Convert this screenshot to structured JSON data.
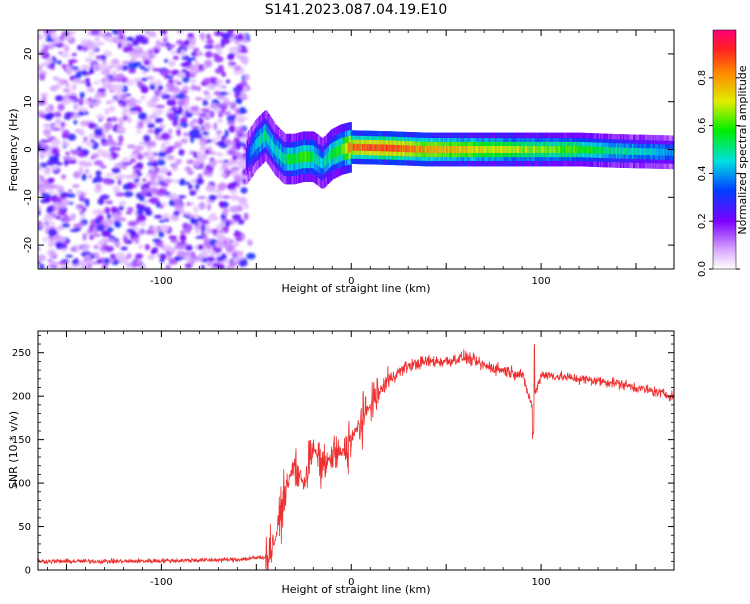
{
  "title": "S141.2023.087.04.19.E10",
  "colors": {
    "snr_line": "#ee3030",
    "axis": "#000000",
    "background": "#ffffff"
  },
  "chart_data": [
    {
      "type": "heatmap",
      "xlabel": "Height of straight line (km)",
      "ylabel": "Frequency (Hz)",
      "xlim": [
        -165,
        170
      ],
      "ylim": [
        -25,
        25
      ],
      "xticks": [
        "-100",
        "0",
        "100"
      ],
      "yticks": [
        "-20",
        "-10",
        "0",
        "10",
        "20"
      ],
      "colorbar": {
        "label": "Normalized spectral amplitude",
        "range": [
          0,
          1
        ],
        "ticks": [
          "0.0",
          "0.2",
          "0.4",
          "0.6",
          "0.8"
        ],
        "colormap": "white-purple-blue-cyan-green-yellow-red-pink"
      },
      "noise_region_x": [
        -165,
        -55
      ],
      "ridge": {
        "x": [
          -55,
          -50,
          -45,
          -40,
          -35,
          -30,
          -25,
          -20,
          -15,
          -10,
          -5,
          0,
          20,
          40,
          60,
          80,
          100,
          120,
          140,
          160,
          170
        ],
        "freq_hz": [
          -2,
          1,
          3,
          0,
          -2,
          -2,
          -1.5,
          -1.5,
          -3,
          -1,
          0,
          0.5,
          0.3,
          0,
          0,
          0,
          0,
          0,
          -0.3,
          -0.5,
          -0.6
        ],
        "amplitude": [
          0.3,
          0.45,
          0.5,
          0.45,
          0.5,
          0.55,
          0.6,
          0.55,
          0.45,
          0.55,
          0.6,
          0.85,
          0.9,
          0.8,
          0.75,
          0.7,
          0.65,
          0.6,
          0.5,
          0.45,
          0.4
        ]
      }
    },
    {
      "type": "line",
      "xlabel": "Height of straight line (km)",
      "ylabel": "SNR (10 * v/v)",
      "xlim": [
        -165,
        170
      ],
      "ylim": [
        0,
        275
      ],
      "xticks": [
        "-100",
        "0",
        "100"
      ],
      "yticks": [
        "0",
        "50",
        "100",
        "150",
        "200",
        "250"
      ],
      "series": [
        {
          "x": [
            -165,
            -150,
            -120,
            -90,
            -60,
            -45,
            -40,
            -35,
            -30,
            -25,
            -20,
            -15,
            -10,
            -5,
            0,
            10,
            20,
            30,
            40,
            50,
            60,
            70,
            80,
            90,
            95,
            100,
            120,
            140,
            160,
            170
          ],
          "values": [
            10,
            10,
            10,
            11,
            12,
            15,
            35,
            90,
            120,
            100,
            140,
            120,
            130,
            135,
            150,
            190,
            220,
            235,
            240,
            240,
            245,
            235,
            230,
            225,
            190,
            225,
            220,
            215,
            205,
            200
          ]
        }
      ]
    }
  ]
}
